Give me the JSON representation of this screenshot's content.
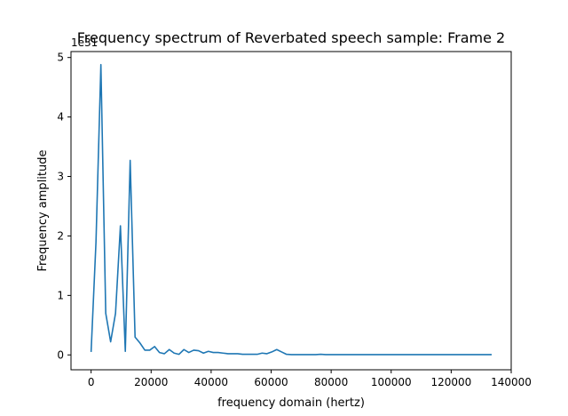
{
  "chart_data": {
    "type": "line",
    "title": "Frequency spectrum of Reverbated speech sample: Frame 2",
    "xlabel": "frequency domain (hertz)",
    "ylabel": "Frequency amplitude",
    "offset_text": "1e31",
    "xlim": [
      -6700,
      140000
    ],
    "ylim": [
      -0.25,
      5.1
    ],
    "x_ticks": [
      0,
      20000,
      40000,
      60000,
      80000,
      100000,
      120000,
      140000
    ],
    "x_tick_labels": [
      "0",
      "20000",
      "40000",
      "60000",
      "80000",
      "100000",
      "120000",
      "140000"
    ],
    "y_ticks": [
      0,
      1,
      2,
      3,
      4,
      5
    ],
    "y_tick_labels": [
      "0",
      "1",
      "2",
      "3",
      "4",
      "5"
    ],
    "grid": false,
    "color": "#1f77b4",
    "series": [
      {
        "x": [
          0,
          1630,
          3260,
          4880,
          6510,
          8140,
          9770,
          11400,
          13020,
          14650,
          16280,
          17910,
          19540,
          21160,
          22790,
          24420,
          26050,
          27670,
          29300,
          30930,
          32560,
          34190,
          35810,
          37440,
          39070,
          40700,
          42330,
          43950,
          45580,
          47210,
          48840,
          50470,
          52090,
          53720,
          55350,
          56980,
          58600,
          60230,
          61860,
          63490,
          65120,
          66740,
          68370,
          70000,
          71630,
          73260,
          74880,
          76510,
          78140,
          79770,
          81400,
          83020,
          84650,
          86280,
          87910,
          89540,
          91160,
          92790,
          94420,
          96050,
          97670,
          99300,
          100930,
          102560,
          104190,
          105810,
          107440,
          109070,
          110700,
          112330,
          113950,
          115580,
          117210,
          118840,
          120470,
          122090,
          123720,
          125350,
          126980,
          128600,
          130230,
          131860,
          133490
        ],
        "values": [
          0.05,
          1.9,
          4.88,
          0.7,
          0.22,
          0.7,
          2.17,
          0.06,
          3.27,
          0.3,
          0.2,
          0.08,
          0.08,
          0.14,
          0.04,
          0.02,
          0.09,
          0.03,
          0.01,
          0.09,
          0.04,
          0.08,
          0.07,
          0.03,
          0.06,
          0.04,
          0.04,
          0.03,
          0.02,
          0.02,
          0.02,
          0.01,
          0.01,
          0.01,
          0.01,
          0.03,
          0.02,
          0.05,
          0.09,
          0.05,
          0.01,
          0.005,
          0.005,
          0.005,
          0.005,
          0.005,
          0.005,
          0.01,
          0.005,
          0.005,
          0.005,
          0.005,
          0.005,
          0.005,
          0.005,
          0.005,
          0.005,
          0.005,
          0.005,
          0.005,
          0.005,
          0.005,
          0.005,
          0.005,
          0.005,
          0.005,
          0.005,
          0.005,
          0.005,
          0.005,
          0.005,
          0.005,
          0.005,
          0.005,
          0.005,
          0.005,
          0.005,
          0.005,
          0.005,
          0.005,
          0.005,
          0.005,
          0.005
        ]
      }
    ]
  }
}
